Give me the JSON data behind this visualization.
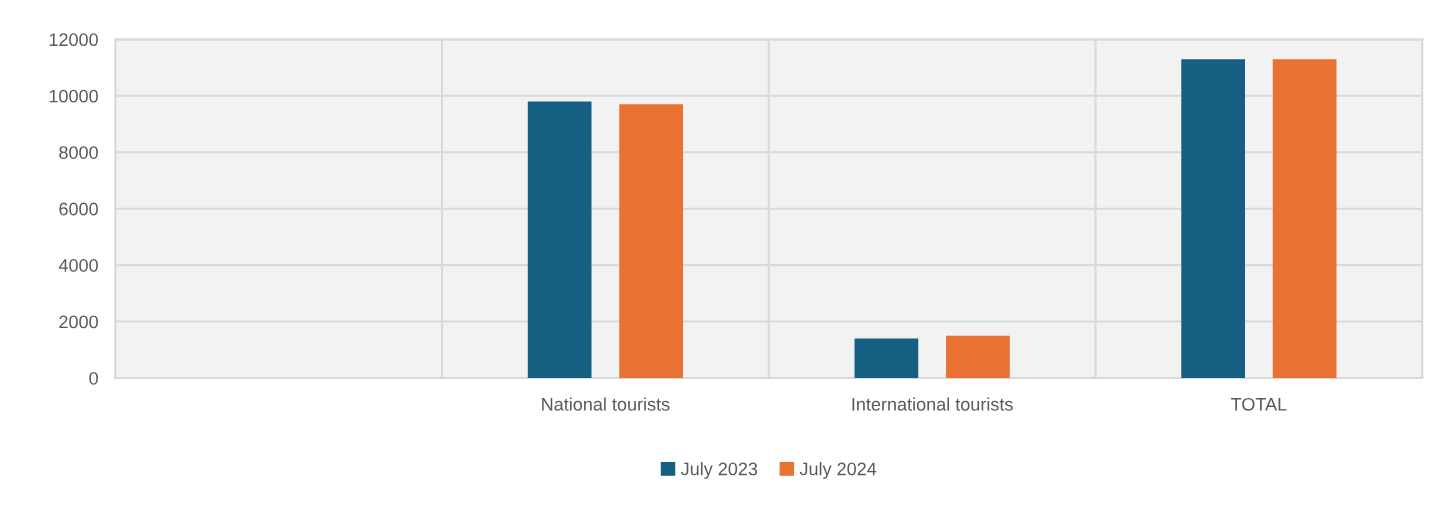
{
  "chart_data": {
    "type": "bar",
    "categories": [
      null,
      "National tourists",
      "International tourists",
      "TOTAL"
    ],
    "series": [
      {
        "name": "July 2023",
        "color": "#155f82",
        "values": [
          null,
          9800,
          1400,
          11300
        ]
      },
      {
        "name": "July 2024",
        "color": "#e97132",
        "values": [
          null,
          9700,
          1500,
          11300
        ]
      }
    ],
    "ylim": [
      0,
      12000
    ],
    "yticks": [
      0,
      2000,
      4000,
      6000,
      8000,
      10000,
      12000
    ],
    "grid": true,
    "legend": "bottom"
  }
}
